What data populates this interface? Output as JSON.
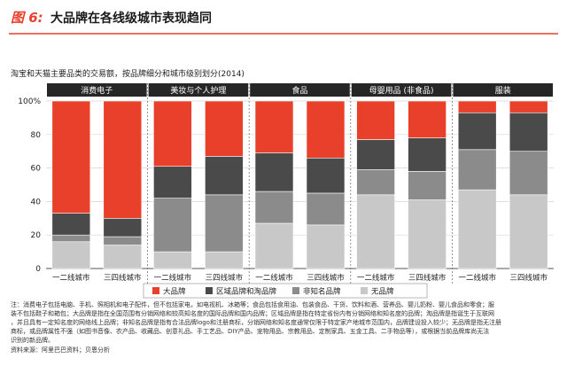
{
  "header": {
    "figure_label": "图 6:",
    "title": "大品牌在各线级城市表现趋同"
  },
  "chart_data": {
    "type": "stacked-bar",
    "subtitle": "淘宝和天猫主要品类的交易额，按品牌细分和城市级别划分(2014)",
    "ylim": [
      0,
      100
    ],
    "yticks": [
      "0",
      "20",
      "40",
      "60",
      "80",
      "100%"
    ],
    "categories": [
      "消费电子",
      "美妆与个人护理",
      "食品",
      "母婴用品 (非食品)",
      "服装"
    ],
    "city_tiers": [
      "一二线城市",
      "三四线城市"
    ],
    "series": [
      {
        "name": "无品牌",
        "color": "#c8c8c8",
        "values": [
          [
            16,
            14
          ],
          [
            10,
            10
          ],
          [
            27,
            26
          ],
          [
            44,
            41
          ],
          [
            47,
            44
          ]
        ]
      },
      {
        "name": "非知名品牌",
        "color": "#8b8b8b",
        "values": [
          [
            4,
            5
          ],
          [
            32,
            34
          ],
          [
            19,
            19
          ],
          [
            15,
            17
          ],
          [
            24,
            26
          ]
        ]
      },
      {
        "name": "区域品牌和淘品牌",
        "color": "#4a4a4a",
        "values": [
          [
            13,
            11
          ],
          [
            19,
            23
          ],
          [
            23,
            21
          ],
          [
            18,
            20
          ],
          [
            22,
            23
          ]
        ]
      },
      {
        "name": "大品牌",
        "color": "#e8402a",
        "values": [
          [
            67,
            70
          ],
          [
            39,
            33
          ],
          [
            31,
            34
          ],
          [
            23,
            22
          ],
          [
            7,
            7
          ]
        ]
      }
    ],
    "legend": [
      "大品牌",
      "区域品牌和淘品牌",
      "非知名品牌",
      "无品牌"
    ]
  },
  "notes": {
    "line1": "注：消费电子包括电脑、手机、照相机和电子配件，但不包括家电，如电视机、冰箱等；食品包括食用油、包装食品、干货、饮料和酒、营养品、婴儿奶粉、婴儿食品和零食；服",
    "line2": "装不包括鞋子和箱包；大品牌是指在全国范围有分销网络和较高知名度的国际品牌和国内品牌；区域品牌是指在特定省份内有分销网络和知名度的品牌；淘品牌是指诞生于互联网",
    "line3": "，并且具有一定知名度的网络线上品牌；非知名品牌是指有合法品牌logo和注册商标，分销网络和知名度通常仅限于特定家产地城市范围内，品牌建设投入较少；无品牌是指无注册",
    "line4": "商标，或品牌属性不强（如图书音像、农产品、收藏品、创意礼品、手工艺品、DIY产品、宠物用品、宗教用品、定制家具、五金工具、二手物品等），或根据当前品牌库尚无法",
    "line5": "识别的新品牌。",
    "source": "资料来源：阿里巴巴资料；贝恩分析"
  }
}
